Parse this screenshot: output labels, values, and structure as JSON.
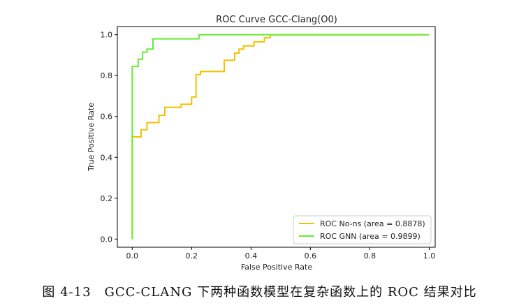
{
  "chart_data": {
    "type": "line",
    "title": "ROC Curve GCC-Clang(O0)",
    "xlabel": "False Positive Rate",
    "ylabel": "True Positive Rate",
    "xlim": [
      -0.05,
      1.02
    ],
    "ylim": [
      -0.04,
      1.04
    ],
    "xticks": [
      0.0,
      0.2,
      0.4,
      0.6,
      0.8,
      1.0
    ],
    "xtick_labels": [
      "0.0",
      "0.2",
      "0.4",
      "0.6",
      "0.8",
      "1.0"
    ],
    "yticks": [
      0.0,
      0.2,
      0.4,
      0.6,
      0.8,
      1.0
    ],
    "ytick_labels": [
      "0.0",
      "0.2",
      "0.4",
      "0.6",
      "0.8",
      "1.0"
    ],
    "grid": false,
    "legend_position": "lower-right",
    "series": [
      {
        "name": "ROC No-ns (area = 0.8878)",
        "color": "#f2c200",
        "points": [
          [
            0.0,
            0.0
          ],
          [
            0.0,
            0.5
          ],
          [
            0.03,
            0.5
          ],
          [
            0.03,
            0.535
          ],
          [
            0.05,
            0.535
          ],
          [
            0.05,
            0.57
          ],
          [
            0.09,
            0.57
          ],
          [
            0.09,
            0.605
          ],
          [
            0.11,
            0.605
          ],
          [
            0.11,
            0.645
          ],
          [
            0.165,
            0.645
          ],
          [
            0.165,
            0.66
          ],
          [
            0.2,
            0.66
          ],
          [
            0.2,
            0.695
          ],
          [
            0.215,
            0.695
          ],
          [
            0.215,
            0.805
          ],
          [
            0.23,
            0.805
          ],
          [
            0.23,
            0.82
          ],
          [
            0.31,
            0.82
          ],
          [
            0.31,
            0.875
          ],
          [
            0.345,
            0.875
          ],
          [
            0.345,
            0.91
          ],
          [
            0.36,
            0.91
          ],
          [
            0.36,
            0.93
          ],
          [
            0.375,
            0.93
          ],
          [
            0.375,
            0.945
          ],
          [
            0.41,
            0.945
          ],
          [
            0.41,
            0.965
          ],
          [
            0.445,
            0.965
          ],
          [
            0.445,
            0.985
          ],
          [
            0.465,
            0.985
          ],
          [
            0.465,
            1.0
          ],
          [
            1.0,
            1.0
          ]
        ]
      },
      {
        "name": "ROC GNN (area = 0.9899)",
        "color": "#66ee33",
        "points": [
          [
            0.0,
            0.0
          ],
          [
            0.0,
            0.845
          ],
          [
            0.02,
            0.845
          ],
          [
            0.02,
            0.88
          ],
          [
            0.035,
            0.88
          ],
          [
            0.035,
            0.915
          ],
          [
            0.05,
            0.915
          ],
          [
            0.05,
            0.93
          ],
          [
            0.07,
            0.93
          ],
          [
            0.07,
            0.98
          ],
          [
            0.225,
            0.98
          ],
          [
            0.225,
            1.0
          ],
          [
            1.0,
            1.0
          ]
        ]
      }
    ]
  },
  "caption": "图 4-13　GCC-CLANG 下两种函数模型在复杂函数上的 ROC 结果对比"
}
